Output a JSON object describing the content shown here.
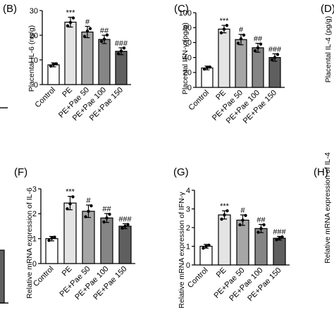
{
  "chart_data": [
    {
      "type": "bar",
      "panel_label": "(B)",
      "ylabel": "Placental IL-6 (ng/g)",
      "yticks": [
        0,
        10,
        20,
        30
      ],
      "ylim": [
        0,
        30
      ],
      "categories": [
        "Control",
        "PE",
        "PE+Pae 50",
        "PE+Pae 100",
        "PE+Pae 150"
      ],
      "values": [
        8,
        25.3,
        21.3,
        18.3,
        13.5
      ],
      "errors": [
        0.8,
        2.0,
        2.3,
        1.7,
        1.4
      ],
      "points": [
        [
          7.5,
          8.2,
          8.4
        ],
        [
          23.8,
          25.2,
          27.0
        ],
        [
          19.5,
          21.7,
          22.7
        ],
        [
          17.5,
          18.4,
          20.1
        ],
        [
          12.5,
          13.6,
          14.8
        ]
      ],
      "annotations": [
        "",
        "***",
        "#",
        "##",
        "###"
      ],
      "colors": [
        "#ffffff",
        "#e4e4e4",
        "#a6a6a6",
        "#858585",
        "#5f5f5f"
      ]
    },
    {
      "type": "bar",
      "panel_label": "(C)",
      "ylabel": "Placental IFN-γ (pg/g)",
      "yticks": [
        0,
        20,
        40,
        60,
        80,
        100
      ],
      "ylim": [
        0,
        100
      ],
      "categories": [
        "Control",
        "PE",
        "PE+Pae 50",
        "PE+Pae 100",
        "PE+Pae 150"
      ],
      "values": [
        26,
        78,
        64,
        53,
        40
      ],
      "errors": [
        2.5,
        5,
        7,
        6,
        5
      ],
      "points": [
        [
          24.5,
          26.5,
          27.2
        ],
        [
          73,
          78,
          83
        ],
        [
          59,
          65,
          70
        ],
        [
          49,
          53,
          58
        ],
        [
          37,
          40,
          44
        ]
      ],
      "annotations": [
        "",
        "***",
        "#",
        "##",
        "###"
      ],
      "colors": [
        "#ffffff",
        "#e4e4e4",
        "#a6a6a6",
        "#858585",
        "#5f5f5f"
      ]
    },
    {
      "type": "bar",
      "panel_label": "(D)",
      "ylabel": "Placental IL-4 (pg/g)",
      "categories": [],
      "values": []
    },
    {
      "type": "bar",
      "panel_label": "(F)",
      "ylabel": "Relative mRNA expression of IL-6",
      "yticks": [
        0,
        1,
        2,
        3
      ],
      "ylim": [
        0,
        3
      ],
      "categories": [
        "Control",
        "PE",
        "PE+Pae 50",
        "PE+Pae 100",
        "PE+Pae 150"
      ],
      "values": [
        1.0,
        2.43,
        2.1,
        1.83,
        1.5
      ],
      "errors": [
        0.09,
        0.27,
        0.25,
        0.18,
        0.1
      ],
      "points": [
        [
          0.93,
          1.02,
          1.06
        ],
        [
          2.2,
          2.4,
          2.68
        ],
        [
          1.88,
          2.1,
          2.32
        ],
        [
          1.67,
          1.83,
          1.98
        ],
        [
          1.42,
          1.5,
          1.57
        ]
      ],
      "annotations": [
        "",
        "***",
        "#",
        "##",
        "###"
      ],
      "colors": [
        "#ffffff",
        "#e4e4e4",
        "#a6a6a6",
        "#858585",
        "#5f5f5f"
      ]
    },
    {
      "type": "bar",
      "panel_label": "(G)",
      "ylabel": "Relative mRNA expression of IFN-γ",
      "yticks": [
        0,
        1,
        2,
        3,
        4
      ],
      "ylim": [
        0,
        4
      ],
      "categories": [
        "Control",
        "PE",
        "PE+Pae 50",
        "PE+Pae 100",
        "PE+Pae 150"
      ],
      "values": [
        1.0,
        2.68,
        2.4,
        1.95,
        1.43
      ],
      "errors": [
        0.1,
        0.22,
        0.28,
        0.22,
        0.1
      ],
      "points": [
        [
          0.9,
          1.0,
          1.06
        ],
        [
          2.45,
          2.68,
          2.9
        ],
        [
          2.15,
          2.4,
          2.65
        ],
        [
          1.75,
          1.95,
          2.15
        ],
        [
          1.35,
          1.43,
          1.5
        ]
      ],
      "annotations": [
        "",
        "***",
        "#",
        "##",
        "###"
      ],
      "colors": [
        "#ffffff",
        "#e4e4e4",
        "#a6a6a6",
        "#858585",
        "#5f5f5f"
      ]
    },
    {
      "type": "bar",
      "panel_label": "(H)",
      "ylabel": "Relative mRNA expression of IL-4",
      "categories": [],
      "values": []
    }
  ]
}
